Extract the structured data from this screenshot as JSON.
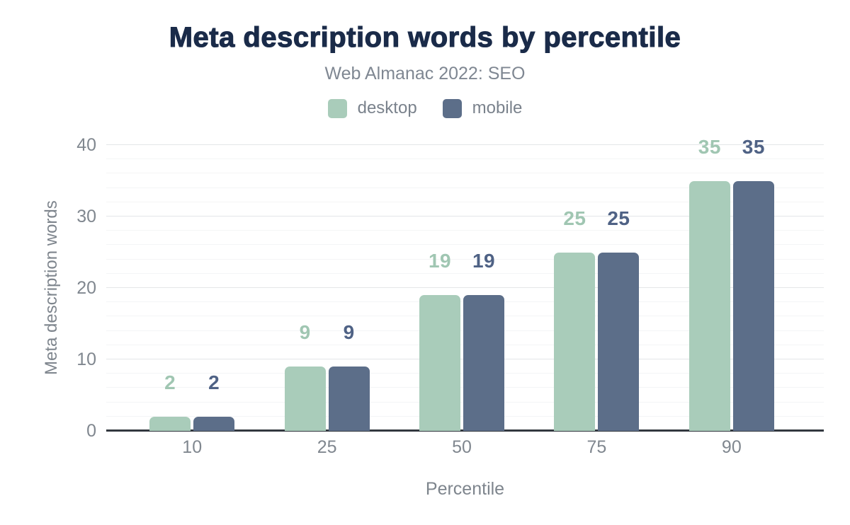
{
  "header": {
    "title": "Meta description words by percentile",
    "subtitle": "Web Almanac 2022: SEO"
  },
  "chart_data": {
    "type": "bar",
    "title": "Meta description words by percentile",
    "subtitle": "Web Almanac 2022: SEO",
    "categories": [
      "10",
      "25",
      "50",
      "75",
      "90"
    ],
    "series": [
      {
        "name": "desktop",
        "values": [
          2,
          9,
          19,
          25,
          35
        ]
      },
      {
        "name": "mobile",
        "values": [
          2,
          9,
          19,
          25,
          35
        ]
      }
    ],
    "xlabel": "Percentile",
    "ylabel": "Meta description words",
    "ylim": [
      0,
      40
    ],
    "yticks": [
      0,
      10,
      20,
      30,
      40
    ],
    "minor_grid_step": 2,
    "grid": "on",
    "legend_position": "top",
    "data_labels": "above-bars"
  },
  "colors": {
    "desktop": "#a9ccba",
    "mobile": "#5c6e89",
    "desktop_label": "#a0c6b2",
    "mobile_label": "#4f6285",
    "title": "#1a2b49",
    "subtitle": "#7f8792",
    "legend_text": "#7a828c",
    "tick_text": "#80878f",
    "axis_title_text": "#7e858d",
    "axis_line": "#32383f",
    "grid_major": "#e4e6e8",
    "grid_minor": "#f4f5f6",
    "background": "#ffffff"
  }
}
